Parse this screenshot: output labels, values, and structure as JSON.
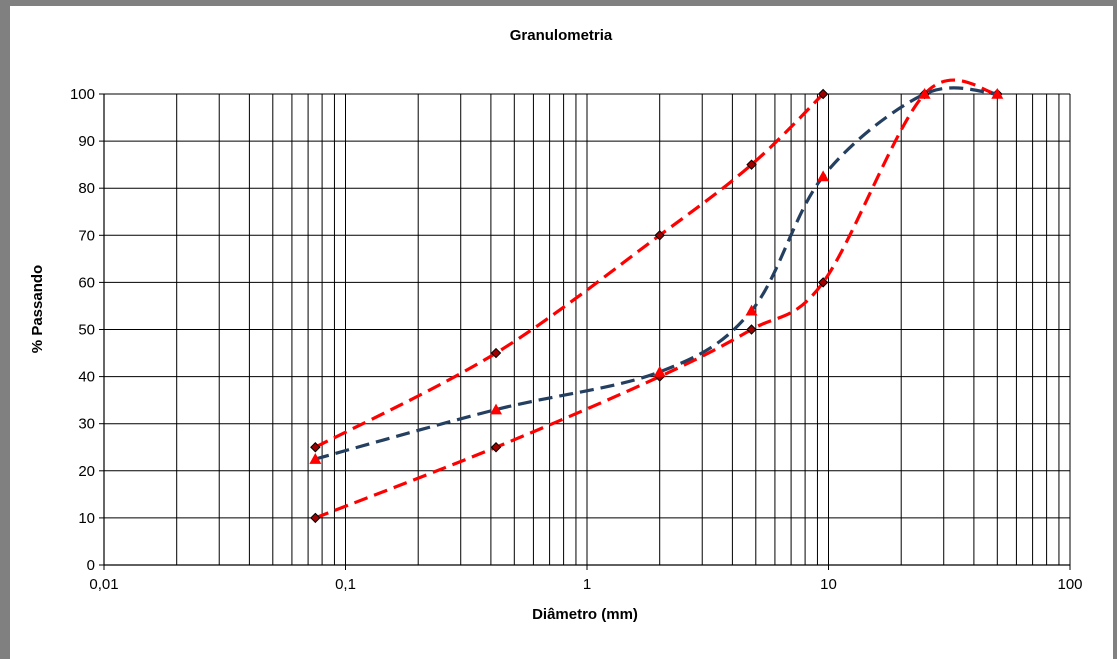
{
  "chart_data": {
    "type": "scatter",
    "title": "Granulometria",
    "xlabel": "Diâmetro (mm)",
    "ylabel": "% Passando",
    "xscale": "log",
    "xlim": [
      0.01,
      100
    ],
    "ylim": [
      0,
      100
    ],
    "grid": true,
    "x_tick_labels": [
      "0,01",
      "0,1",
      "1",
      "10",
      "100"
    ],
    "y_tick_labels": [
      "0",
      "10",
      "20",
      "30",
      "40",
      "50",
      "60",
      "70",
      "80",
      "90",
      "100"
    ],
    "series": [
      {
        "style": "dashed-line-diamond-markers",
        "color": "#ff0000",
        "x": [
          0.075,
          0.42,
          2,
          4.8,
          9.5
        ],
        "y": [
          25,
          45,
          70,
          85,
          100
        ]
      },
      {
        "style": "dashed-line-diamond-markers",
        "color": "#ff0000",
        "x": [
          0.075,
          0.42,
          2,
          4.8,
          9.5,
          25,
          50
        ],
        "y": [
          10,
          25,
          40,
          50,
          60,
          100,
          100
        ]
      },
      {
        "style": "dashed-line-triangle-markers",
        "color": "#243f60",
        "marker_color": "#ff0000",
        "x": [
          0.075,
          0.42,
          2,
          4.8,
          9.5,
          25,
          50
        ],
        "y": [
          22.5,
          33,
          41,
          54,
          82.5,
          100,
          100
        ]
      }
    ]
  }
}
